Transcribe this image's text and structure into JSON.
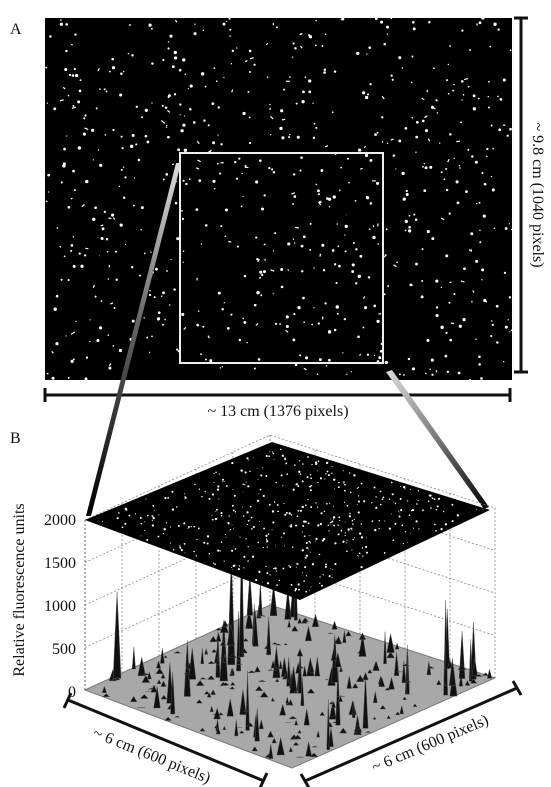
{
  "panel_a": {
    "label": "A",
    "height_label": "~ 9.8 cm (1040 pixels)",
    "width_label": "~ 13 cm (1376 pixels)"
  },
  "panel_b": {
    "label": "B",
    "z_axis_title": "Relative fluorescence units",
    "z_ticks": [
      0,
      500,
      1000,
      1500,
      2000
    ],
    "x_label": "~ 6 cm (600 pixels)",
    "y_label": "~ 6 cm (600 pixels)"
  }
}
